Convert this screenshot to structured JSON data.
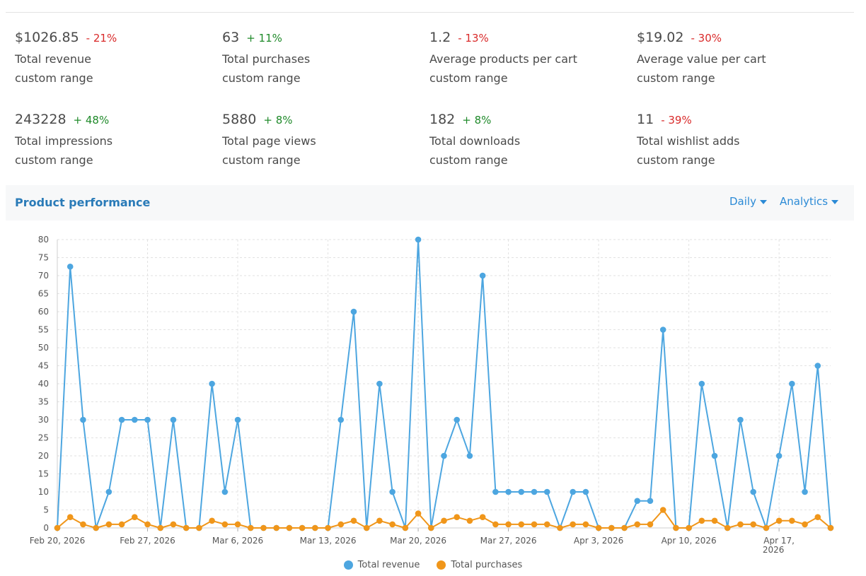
{
  "colors": {
    "accent": "#2b8ad6",
    "revenue": "#4da6e0",
    "purchases": "#f0961a",
    "positive": "#1f8a2a",
    "negative": "#d92a2a"
  },
  "stats": [
    {
      "value": "$1026.85",
      "change": "- 21%",
      "trend": "down",
      "label": "Total revenue",
      "range": "custom range"
    },
    {
      "value": "63",
      "change": "+ 11%",
      "trend": "up",
      "label": "Total purchases",
      "range": "custom range"
    },
    {
      "value": "1.2",
      "change": "- 13%",
      "trend": "down",
      "label": "Average products per cart",
      "range": "custom range"
    },
    {
      "value": "$19.02",
      "change": "- 30%",
      "trend": "down",
      "label": "Average value per cart",
      "range": "custom range"
    },
    {
      "value": "243228",
      "change": "+ 48%",
      "trend": "up",
      "label": "Total impressions",
      "range": "custom range"
    },
    {
      "value": "5880",
      "change": "+ 8%",
      "trend": "up",
      "label": "Total page views",
      "range": "custom range"
    },
    {
      "value": "182",
      "change": "+ 8%",
      "trend": "up",
      "label": "Total downloads",
      "range": "custom range"
    },
    {
      "value": "11",
      "change": "- 39%",
      "trend": "down",
      "label": "Total wishlist adds",
      "range": "custom range"
    }
  ],
  "panel": {
    "title": "Product performance",
    "interval": "Daily",
    "mode": "Analytics"
  },
  "chart_data": {
    "type": "line",
    "x_start": "Feb 20, 2026",
    "x_end": "Apr 19, 2026",
    "x_tick_labels": [
      "Feb 20, 2026",
      "Feb 27, 2026",
      "Mar 6, 2026",
      "Mar 13, 2026",
      "Mar 20, 2026",
      "Mar 27, 2026",
      "Apr 3, 2026",
      "Apr 10, 2026",
      "Apr 17, 2026"
    ],
    "y_ticks": [
      0,
      5,
      10,
      15,
      20,
      25,
      30,
      35,
      40,
      45,
      50,
      55,
      60,
      65,
      70,
      75,
      80
    ],
    "ylim": [
      0,
      80
    ],
    "grid": true,
    "legend_position": "bottom-center",
    "series": [
      {
        "name": "Total revenue",
        "color": "#4da6e0",
        "values": [
          0,
          72.5,
          30,
          0,
          10,
          30,
          30,
          30,
          0,
          30,
          0,
          0,
          40,
          10,
          30,
          0,
          0,
          0,
          0,
          0,
          0,
          0,
          30,
          60,
          0,
          40,
          10,
          0,
          80,
          0,
          20,
          30,
          20,
          70,
          10,
          10,
          10,
          10,
          10,
          0,
          10,
          10,
          0,
          0,
          0,
          7.5,
          7.5,
          55,
          0,
          0,
          40,
          20,
          0,
          30,
          10,
          0,
          20,
          40,
          10,
          45,
          0
        ]
      },
      {
        "name": "Total purchases",
        "color": "#f0961a",
        "values": [
          0,
          3,
          1,
          0,
          1,
          1,
          3,
          1,
          0,
          1,
          0,
          0,
          2,
          1,
          1,
          0,
          0,
          0,
          0,
          0,
          0,
          0,
          1,
          2,
          0,
          2,
          1,
          0,
          4,
          0,
          2,
          3,
          2,
          3,
          1,
          1,
          1,
          1,
          1,
          0,
          1,
          1,
          0,
          0,
          0,
          1,
          1,
          5,
          0,
          0,
          2,
          2,
          0,
          1,
          1,
          0,
          2,
          2,
          1,
          3,
          0
        ]
      }
    ]
  }
}
